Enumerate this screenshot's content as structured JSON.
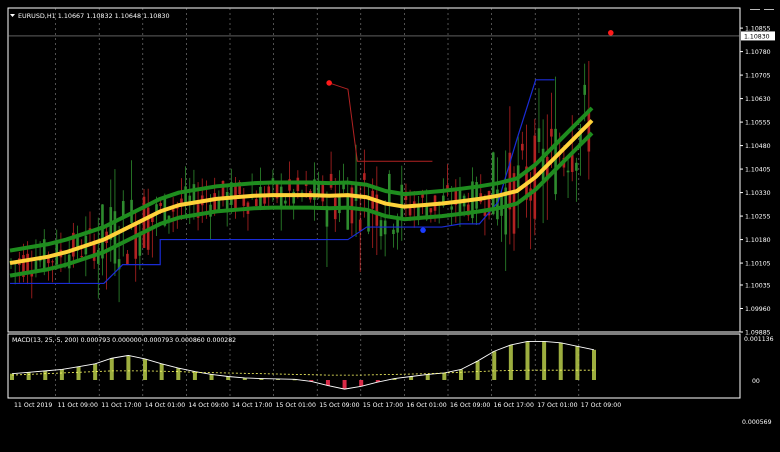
{
  "window": {
    "symbol_line": "EURUSD,H1  1.10667 1.10832 1.10648 1.10830",
    "current_price": "1.10830"
  },
  "colors": {
    "background": "#000000",
    "grid": "#c0c0c0",
    "axis": "#ffffff",
    "bull": "#2e8b2e",
    "bear": "#b22222",
    "envelope": "#1e8c1e",
    "center_band": "#ffd23a",
    "stop_line": "#1a2cd6",
    "signal_dot_red": "#ff1a1a",
    "signal_dot_blue": "#1a3cff",
    "macd_hist": "#b8cc4a",
    "macd_neg": "#ff3355",
    "macd_line": "#ffffff",
    "macd_signal": "#ffff66"
  },
  "price_axis": {
    "labels": [
      "1.10855",
      "1.10780",
      "1.10705",
      "1.10630",
      "1.10555",
      "1.10480",
      "1.10405",
      "1.10330",
      "1.10255",
      "1.10180",
      "1.10105",
      "1.10035",
      "1.09960",
      "1.09885"
    ]
  },
  "time_axis": {
    "labels": [
      "11 Oct 2019",
      "11 Oct 09:00",
      "11 Oct 17:00",
      "14 Oct 01:00",
      "14 Oct 09:00",
      "14 Oct 17:00",
      "15 Oct 01:00",
      "15 Oct 09:00",
      "15 Oct 17:00",
      "16 Oct 01:00",
      "16 Oct 09:00",
      "16 Oct 17:00",
      "17 Oct 01:00",
      "17 Oct 09:00"
    ]
  },
  "macd_panel": {
    "title": "MACD(13, 25, 5, 200) 0.000793 0.000000 0.000793 0.000860 0.000282",
    "axis_top": "0.001136",
    "axis_mid": "00",
    "axis_bottom": "0.000569"
  },
  "chart_data": {
    "type": "candlestick",
    "symbol": "EURUSD",
    "timeframe": "H1",
    "ylim": [
      1.09885,
      1.109
    ],
    "last": {
      "open": 1.10667,
      "high": 1.10832,
      "low": 1.10648,
      "close": 1.1083
    },
    "center_band": [
      1.10105,
      1.10115,
      1.10125,
      1.1014,
      1.1016,
      1.1018,
      1.1021,
      1.1024,
      1.1027,
      1.1029,
      1.103,
      1.1031,
      1.10315,
      1.1032,
      1.10322,
      1.10322,
      1.10322,
      1.1032,
      1.10322,
      1.10315,
      1.10295,
      1.10285,
      1.1029,
      1.10295,
      1.10302,
      1.1031,
      1.1032,
      1.10335,
      1.1038,
      1.1044,
      1.105,
      1.1056
    ],
    "envelope_gap": 0.0004,
    "stop_line": [
      [
        0,
        1.1004
      ],
      [
        5,
        1.1004
      ],
      [
        6,
        1.101
      ],
      [
        8,
        1.101
      ],
      [
        8,
        1.1018
      ],
      [
        14,
        1.1018
      ],
      [
        15,
        1.1018
      ],
      [
        18,
        1.1018
      ],
      [
        19,
        1.1022
      ],
      [
        23,
        1.1022
      ],
      [
        24,
        1.1023
      ],
      [
        25,
        1.1023
      ],
      [
        26,
        1.103
      ],
      [
        27,
        1.105
      ],
      [
        28,
        1.1069
      ],
      [
        29,
        1.1069
      ]
    ],
    "red_signal_points": [
      [
        17,
        1.1068
      ],
      [
        32,
        1.1084
      ]
    ],
    "blue_signal_points": [
      [
        22,
        1.1021
      ]
    ],
    "macd_histogram": [
      0.00018,
      0.00022,
      0.00026,
      0.0003,
      0.00038,
      0.00046,
      0.00062,
      0.0007,
      0.0006,
      0.00046,
      0.00034,
      0.00024,
      0.00016,
      0.0001,
      6e-05,
      4e-05,
      3e-05,
      2e-05,
      -4e-05,
      -0.00016,
      -0.00026,
      -0.00018,
      -6e-05,
      4e-05,
      0.0001,
      0.00016,
      0.0002,
      0.0003,
      0.00054,
      0.00082,
      0.001,
      0.0011,
      0.0011,
      0.00106,
      0.00096,
      0.00086
    ],
    "macd_signal_line": [
      0.00014,
      0.00016,
      0.00018,
      0.0002,
      0.00022,
      0.00024,
      0.00026,
      0.00026,
      0.00026,
      0.00025,
      0.00024,
      0.00022,
      0.00021,
      0.0002,
      0.00019,
      0.00018,
      0.00017,
      0.00016,
      0.00015,
      0.00014,
      0.00014,
      0.00014,
      0.00015,
      0.00016,
      0.00017,
      0.00018,
      0.0002,
      0.00022,
      0.00024,
      0.00026,
      0.00027,
      0.00028,
      0.00028,
      0.00028,
      0.00028,
      0.00028
    ]
  }
}
